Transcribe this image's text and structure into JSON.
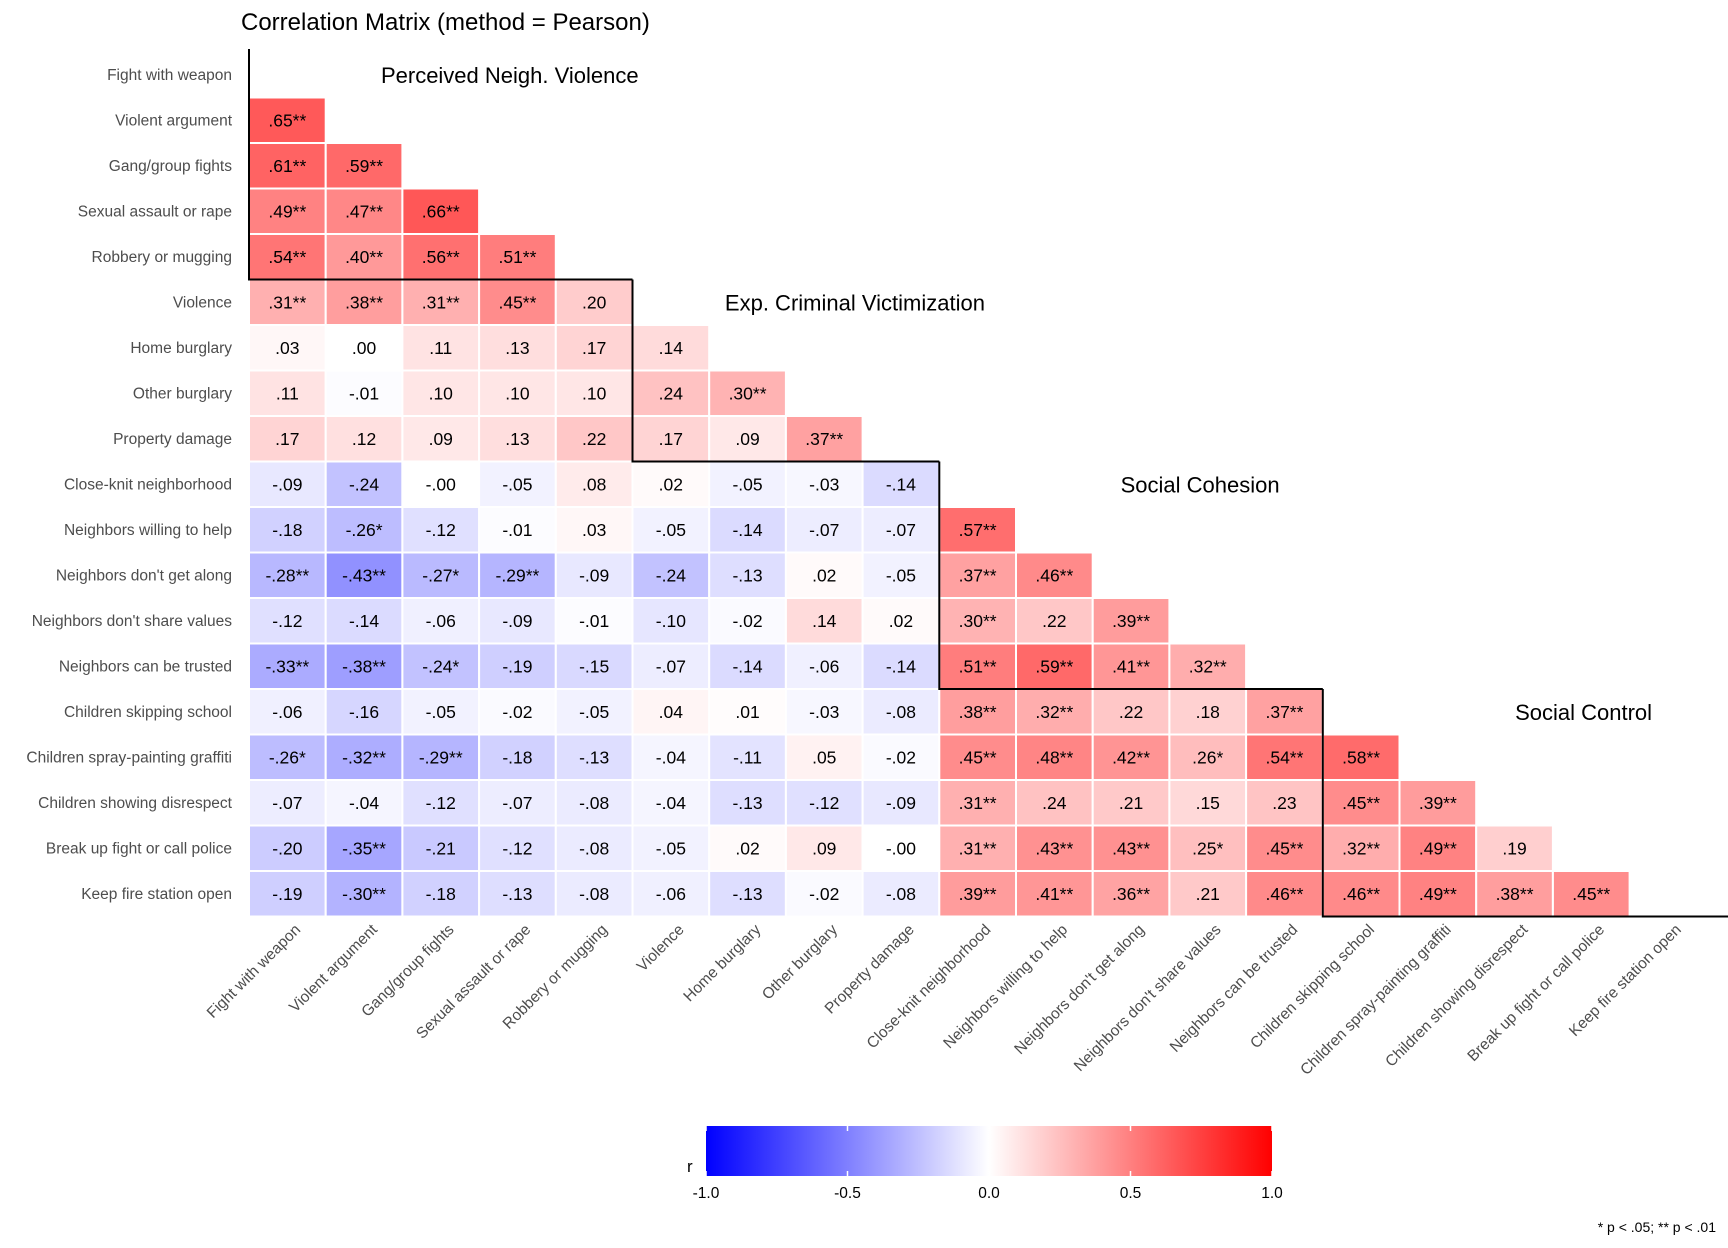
{
  "chart_data": {
    "type": "heatmap",
    "title": "Correlation Matrix (method = Pearson)",
    "variables": [
      "Fight with weapon",
      "Violent argument",
      "Gang/group fights",
      "Sexual assault or rape",
      "Robbery or mugging",
      "Violence",
      "Home burglary",
      "Other burglary",
      "Property damage",
      "Close-knit neighborhood",
      "Neighbors willing to help",
      "Neighbors don't get along",
      "Neighbors don't share values",
      "Neighbors can be trusted",
      "Children skipping school",
      "Children spray-painting graffiti",
      "Children showing disrespect",
      "Break up fight or call police",
      "Keep fire station open"
    ],
    "lower_triangle": [
      [],
      [
        ".65**"
      ],
      [
        ".61**",
        ".59**"
      ],
      [
        ".49**",
        ".47**",
        ".66**"
      ],
      [
        ".54**",
        ".40**",
        ".56**",
        ".51**"
      ],
      [
        ".31**",
        ".38**",
        ".31**",
        ".45**",
        ".20"
      ],
      [
        ".03",
        ".00",
        ".11",
        ".13",
        ".17",
        ".14"
      ],
      [
        ".11",
        "-.01",
        ".10",
        ".10",
        ".10",
        ".24",
        ".30**"
      ],
      [
        ".17",
        ".12",
        ".09",
        ".13",
        ".22",
        ".17",
        ".09",
        ".37**"
      ],
      [
        "-.09",
        "-.24",
        "-.00",
        "-.05",
        ".08",
        ".02",
        "-.05",
        "-.03",
        "-.14"
      ],
      [
        "-.18",
        "-.26*",
        "-.12",
        "-.01",
        ".03",
        "-.05",
        "-.14",
        "-.07",
        "-.07",
        ".57**"
      ],
      [
        "-.28**",
        "-.43**",
        "-.27*",
        "-.29**",
        "-.09",
        "-.24",
        "-.13",
        ".02",
        "-.05",
        ".37**",
        ".46**"
      ],
      [
        "-.12",
        "-.14",
        "-.06",
        "-.09",
        "-.01",
        "-.10",
        "-.02",
        ".14",
        ".02",
        ".30**",
        ".22",
        ".39**"
      ],
      [
        "-.33**",
        "-.38**",
        "-.24*",
        "-.19",
        "-.15",
        "-.07",
        "-.14",
        "-.06",
        "-.14",
        ".51**",
        ".59**",
        ".41**",
        ".32**"
      ],
      [
        "-.06",
        "-.16",
        "-.05",
        "-.02",
        "-.05",
        ".04",
        ".01",
        "-.03",
        "-.08",
        ".38**",
        ".32**",
        ".22",
        ".18",
        ".37**"
      ],
      [
        "-.26*",
        "-.32**",
        "-.29**",
        "-.18",
        "-.13",
        "-.04",
        "-.11",
        ".05",
        "-.02",
        ".45**",
        ".48**",
        ".42**",
        ".26*",
        ".54**",
        ".58**"
      ],
      [
        "-.07",
        "-.04",
        "-.12",
        "-.07",
        "-.08",
        "-.04",
        "-.13",
        "-.12",
        "-.09",
        ".31**",
        ".24",
        ".21",
        ".15",
        ".23",
        ".45**",
        ".39**"
      ],
      [
        "-.20",
        "-.35**",
        "-.21",
        "-.12",
        "-.08",
        "-.05",
        ".02",
        ".09",
        "-.00",
        ".31**",
        ".43**",
        ".43**",
        ".25*",
        ".45**",
        ".32**",
        ".49**",
        ".19"
      ],
      [
        "-.19",
        "-.30**",
        "-.18",
        "-.13",
        "-.08",
        "-.06",
        "-.13",
        "-.02",
        "-.08",
        ".39**",
        ".41**",
        ".36**",
        ".21",
        ".46**",
        ".46**",
        ".49**",
        ".38**",
        ".45**"
      ]
    ],
    "groups": [
      {
        "label": "Perceived Neigh. Violence",
        "start": 0,
        "end": 4
      },
      {
        "label": "Exp. Criminal Victimization",
        "start": 5,
        "end": 8
      },
      {
        "label": "Social Cohesion",
        "start": 9,
        "end": 13
      },
      {
        "label": "Social Control",
        "start": 14,
        "end": 18
      }
    ],
    "color_scale": {
      "title": "r",
      "range": [
        -1.0,
        1.0
      ],
      "ticks": [
        "-1.0",
        "-0.5",
        "0.0",
        "0.5",
        "1.0"
      ],
      "low_color": "#0000ff",
      "mid_color": "#ffffff",
      "high_color": "#ff0000",
      "legend_position": "bottom"
    },
    "significance_note": "* p < .05; ** p < .01",
    "xlabel": "",
    "ylabel": ""
  }
}
